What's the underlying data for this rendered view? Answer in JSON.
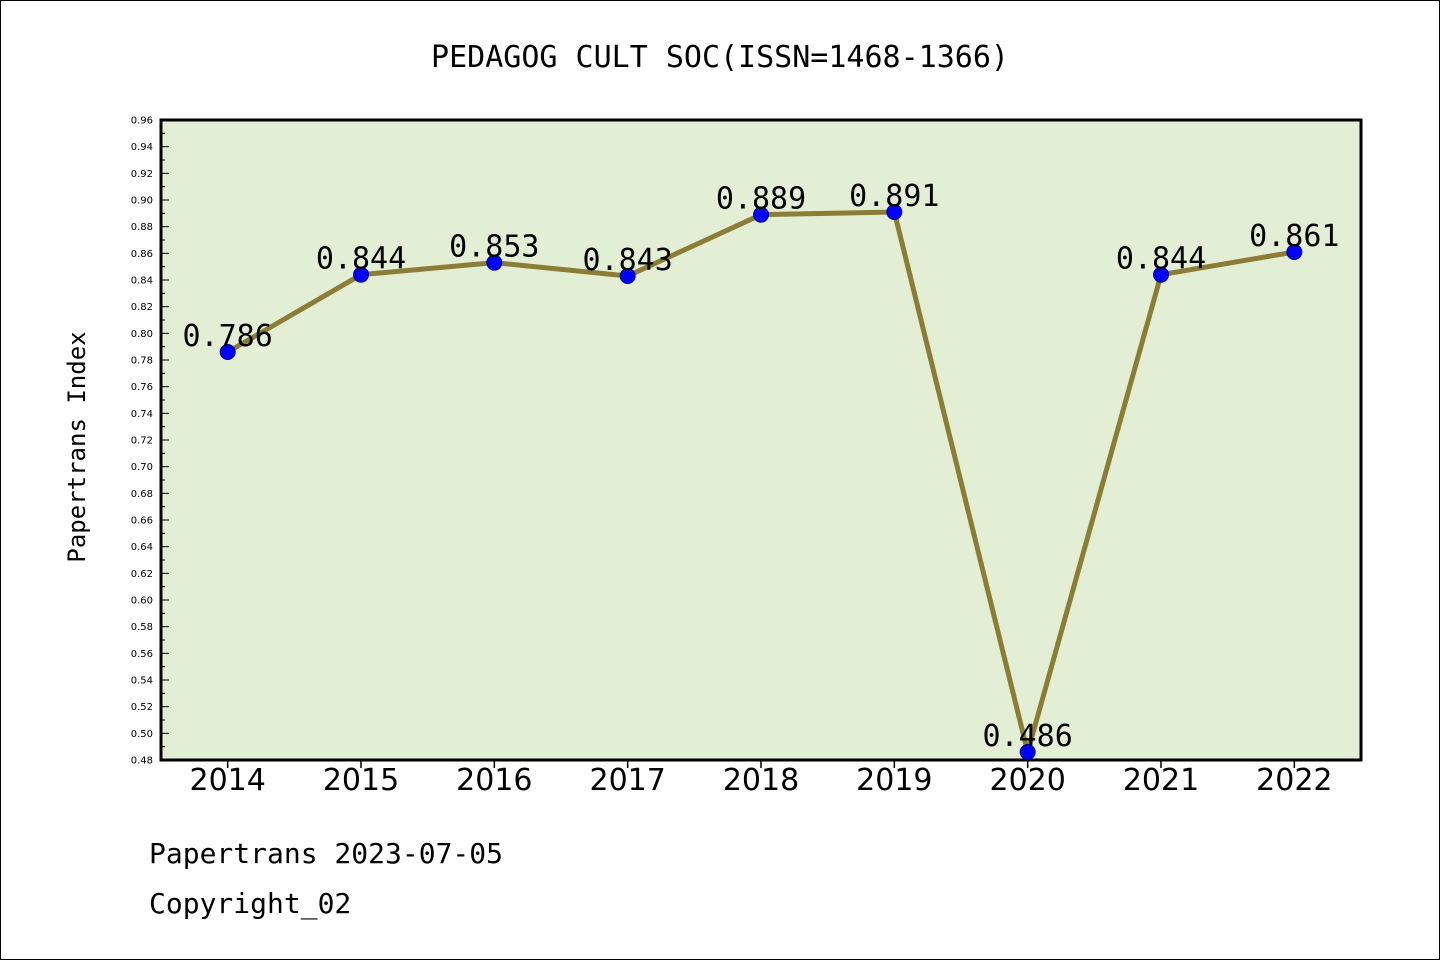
{
  "chart_data": {
    "type": "line",
    "title": "PEDAGOG CULT SOC(ISSN=1468-1366)",
    "ylabel": "Papertrans Index",
    "xlabel": "",
    "categories": [
      "2014",
      "2015",
      "2016",
      "2017",
      "2018",
      "2019",
      "2020",
      "2021",
      "2022"
    ],
    "values": [
      0.786,
      0.844,
      0.853,
      0.843,
      0.889,
      0.891,
      0.486,
      0.844,
      0.861
    ],
    "data_labels": [
      "0.786",
      "0.844",
      "0.853",
      "0.843",
      "0.889",
      "0.891",
      "0.486",
      "0.844",
      "0.861"
    ],
    "ylim": [
      0.48,
      0.96
    ],
    "yticks": [
      "0.48",
      "0.50",
      "0.52",
      "0.54",
      "0.56",
      "0.58",
      "0.60",
      "0.62",
      "0.64",
      "0.66",
      "0.68",
      "0.70",
      "0.72",
      "0.74",
      "0.76",
      "0.78",
      "0.80",
      "0.82",
      "0.84",
      "0.86",
      "0.88",
      "0.90",
      "0.92",
      "0.94",
      "0.96"
    ],
    "grid": false,
    "colors": {
      "plot_background": "#e2efd4",
      "line": "#8b7d35",
      "marker": "#0000ff"
    }
  },
  "footer": {
    "line1": "Papertrans 2023-07-05",
    "line2": "Copyright_02"
  }
}
